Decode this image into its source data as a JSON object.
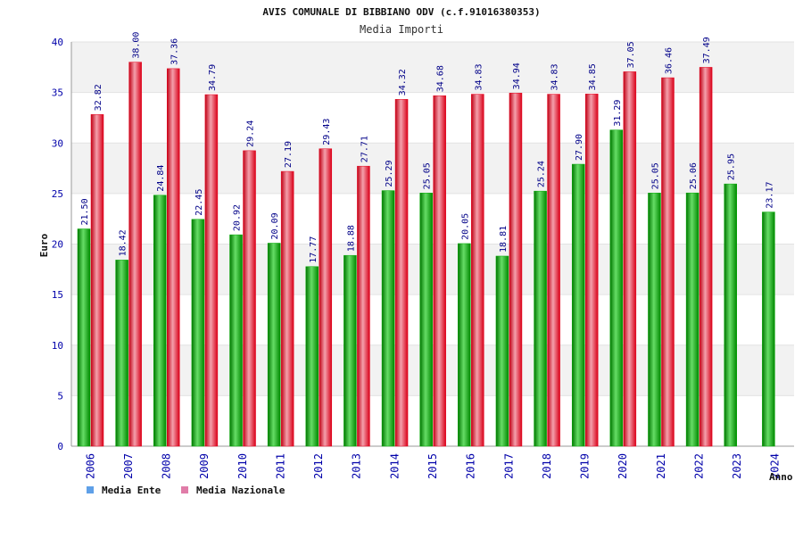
{
  "chart_data": {
    "type": "bar",
    "title": "AVIS COMUNALE DI BIBBIANO ODV (c.f.91016380353)",
    "subtitle": "Media Importi",
    "ylabel": "Euro",
    "xlabel": "Anno",
    "ylim": [
      0,
      40
    ],
    "yticks": [
      0,
      5,
      10,
      15,
      20,
      25,
      30,
      35,
      40
    ],
    "grid": true,
    "legend_position": "bottom-left",
    "categories": [
      "2006",
      "2007",
      "2008",
      "2009",
      "2010",
      "2011",
      "2012",
      "2013",
      "2014",
      "2015",
      "2016",
      "2017",
      "2018",
      "2019",
      "2020",
      "2021",
      "2022",
      "2023",
      "2024"
    ],
    "series": [
      {
        "name": "Media Ente",
        "values": [
          21.5,
          18.42,
          24.84,
          22.45,
          20.92,
          20.09,
          17.77,
          18.88,
          25.29,
          25.05,
          20.05,
          18.81,
          25.24,
          27.9,
          31.29,
          25.05,
          25.06,
          25.95,
          23.17
        ],
        "labels": [
          "21.50",
          "18.42",
          "24.84",
          "22.45",
          "20.92",
          "20.09",
          "17.77",
          "18.88",
          "25.29",
          "25.05",
          "20.05",
          "18.81",
          "25.24",
          "27.90",
          "31.29",
          "25.05",
          "25.06",
          "25.95",
          "23.17"
        ]
      },
      {
        "name": "Media Nazionale",
        "values": [
          32.82,
          38.0,
          37.36,
          34.79,
          29.24,
          27.19,
          29.43,
          27.71,
          34.32,
          34.68,
          34.83,
          34.94,
          34.83,
          34.85,
          37.05,
          36.46,
          37.49,
          null,
          null
        ],
        "labels": [
          "32.82",
          "38.00",
          "37.36",
          "34.79",
          "29.24",
          "27.19",
          "29.43",
          "27.71",
          "34.32",
          "34.68",
          "34.83",
          "34.94",
          "34.83",
          "34.85",
          "37.05",
          "36.46",
          "37.49",
          null,
          null
        ]
      }
    ]
  },
  "colors": {
    "ente": "#00aa00",
    "ente_light": "#66dd66",
    "nazionale": "#e8001c",
    "nazionale_light": "#f4a0ac",
    "legend_ente": "#5fa0e8",
    "legend_nazionale": "#e07ca8",
    "grid_band": "#f2f2f2",
    "axis": "#999999",
    "tick_text": "#0000aa",
    "value_text": "#000088"
  }
}
